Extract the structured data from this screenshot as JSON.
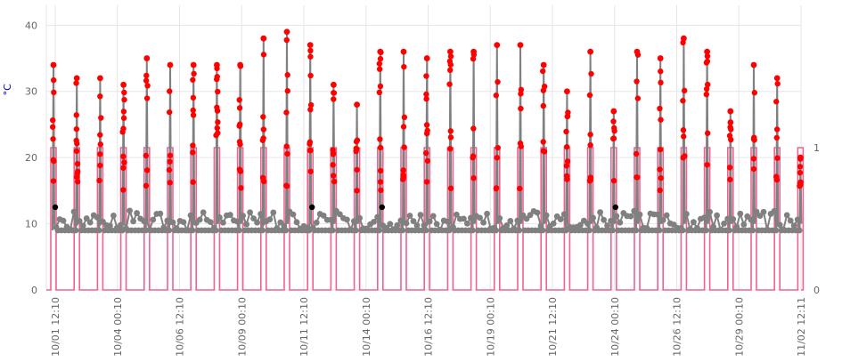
{
  "chart_data": {
    "type": "line",
    "title": "",
    "y_left": {
      "label": "°C",
      "min": 0,
      "max": 43,
      "ticks": [
        0,
        10,
        20,
        30,
        40
      ]
    },
    "y_right": {
      "label": "",
      "min": 0,
      "max": 2,
      "ticks": [
        0,
        1
      ]
    },
    "x_tick_labels": [
      "10/01 12:10",
      "10/04 00:10",
      "10/06 12:10",
      "10/09 00:10",
      "10/11 12:10",
      "10/14 00:10",
      "10/16 12:10",
      "10/19 00:10",
      "10/21 12:10",
      "10/24 00:10",
      "10/26 12:10",
      "10/29 00:10",
      "11/02 12:11"
    ],
    "grid": true,
    "legend": "none",
    "colors": {
      "temperature_line": "#808080",
      "peak_points": "#ff0000",
      "baseline_points": "#808080",
      "other_points": "#000000",
      "pulse": "#f06292",
      "grid": "#e6e6e6",
      "y_label": "#0000cc",
      "tick_text": "#666666"
    },
    "baseline_temperature_range": [
      8,
      12
    ],
    "series": [
      {
        "axis": "left",
        "peaks": [
          {
            "day": 0.0,
            "max": 34
          },
          {
            "day": 1.0,
            "max": 32
          },
          {
            "day": 2.0,
            "max": 32
          },
          {
            "day": 3.0,
            "max": 31
          },
          {
            "day": 4.0,
            "max": 35
          },
          {
            "day": 5.0,
            "max": 34
          },
          {
            "day": 6.0,
            "max": 34
          },
          {
            "day": 7.0,
            "max": 34
          },
          {
            "day": 8.0,
            "max": 34
          },
          {
            "day": 9.0,
            "max": 38
          },
          {
            "day": 10.0,
            "max": 39
          },
          {
            "day": 11.0,
            "max": 37
          },
          {
            "day": 12.0,
            "max": 31
          },
          {
            "day": 13.0,
            "max": 28
          },
          {
            "day": 14.0,
            "max": 36
          },
          {
            "day": 15.0,
            "max": 36
          },
          {
            "day": 16.0,
            "max": 35
          },
          {
            "day": 17.0,
            "max": 36
          },
          {
            "day": 18.0,
            "max": 36
          },
          {
            "day": 19.0,
            "max": 37
          },
          {
            "day": 20.0,
            "max": 37
          },
          {
            "day": 21.0,
            "max": 34
          },
          {
            "day": 22.0,
            "max": 30
          },
          {
            "day": 23.0,
            "max": 36
          },
          {
            "day": 24.0,
            "max": 27
          },
          {
            "day": 25.0,
            "max": 36
          },
          {
            "day": 26.0,
            "max": 35
          },
          {
            "day": 27.0,
            "max": 38
          },
          {
            "day": 28.0,
            "max": 36
          },
          {
            "day": 29.0,
            "max": 27
          },
          {
            "day": 30.0,
            "max": 34
          },
          {
            "day": 31.0,
            "max": 32
          },
          {
            "day": 32.0,
            "max": 20
          }
        ]
      },
      {
        "axis": "right",
        "pulse_high": 1,
        "pulse_low": 0
      }
    ]
  }
}
